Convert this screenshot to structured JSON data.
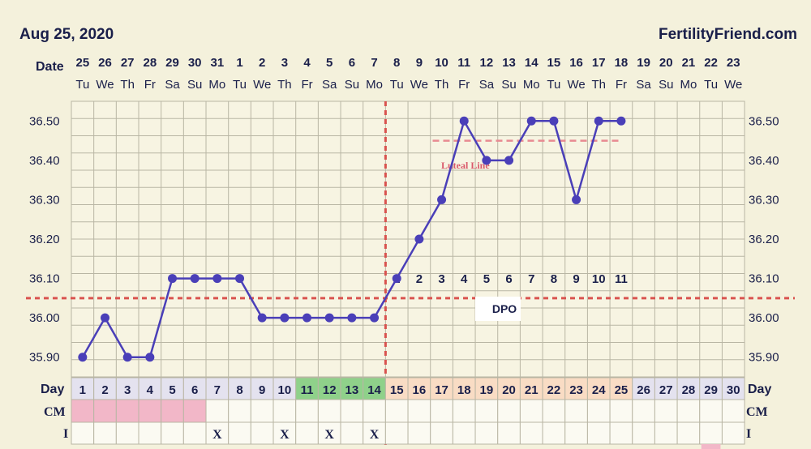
{
  "header": {
    "date": "Aug 25, 2020",
    "site": "FertilityFriend.com"
  },
  "row_labels": {
    "date": "Date",
    "day": "Day",
    "day_right": "Day",
    "cm": "CM",
    "cm_right": "CM",
    "i": "I",
    "i_right": "I"
  },
  "annotations": {
    "dpo_label": "DPO",
    "luteal_label": "Luteal Line"
  },
  "colors": {
    "line": "#4a3fb8",
    "coverline": "#d9534f",
    "luteal": "#e88a92",
    "fertile": "#8fd18a",
    "luteal_phase": "#f9dcc4",
    "menses": "#f2b7c8",
    "grid": "#b9b6a4"
  },
  "chart_data": {
    "type": "line",
    "title": "",
    "dates": [
      "25",
      "26",
      "27",
      "28",
      "29",
      "30",
      "31",
      "1",
      "2",
      "3",
      "4",
      "5",
      "6",
      "7",
      "8",
      "9",
      "10",
      "11",
      "12",
      "13",
      "14",
      "15",
      "16",
      "17",
      "18",
      "19",
      "20",
      "21",
      "22",
      "23"
    ],
    "weekdays": [
      "Tu",
      "We",
      "Th",
      "Fr",
      "Sa",
      "Su",
      "Mo",
      "Tu",
      "We",
      "Th",
      "Fr",
      "Sa",
      "Su",
      "Mo",
      "Tu",
      "We",
      "Th",
      "Fr",
      "Sa",
      "Su",
      "Mo",
      "Tu",
      "We",
      "Th",
      "Fr",
      "Sa",
      "Su",
      "Mo",
      "Tu",
      "We"
    ],
    "cycle_days": [
      "1",
      "2",
      "3",
      "4",
      "5",
      "6",
      "7",
      "8",
      "9",
      "10",
      "11",
      "12",
      "13",
      "14",
      "15",
      "16",
      "17",
      "18",
      "19",
      "20",
      "21",
      "22",
      "23",
      "24",
      "25",
      "26",
      "27",
      "28",
      "29",
      "30"
    ],
    "temperatures": [
      35.9,
      36.0,
      35.9,
      35.9,
      36.1,
      36.1,
      36.1,
      36.1,
      36.0,
      36.0,
      36.0,
      36.0,
      36.0,
      36.0,
      36.1,
      36.2,
      36.3,
      36.5,
      36.4,
      36.4,
      36.5,
      36.5,
      36.3,
      36.5,
      36.5
    ],
    "yticks": [
      "36.50",
      "36.40",
      "36.30",
      "36.20",
      "36.10",
      "36.00",
      "35.90"
    ],
    "ylim": [
      35.85,
      36.55
    ],
    "coverline": 36.05,
    "ovulation_day": 14,
    "luteal_line": 36.45,
    "luteal_range": [
      17,
      25
    ],
    "dpo": [
      "1",
      "2",
      "3",
      "4",
      "5",
      "6",
      "7",
      "8",
      "9",
      "10",
      "11"
    ],
    "dpo_start_day": 15,
    "fertile_days": [
      11,
      12,
      13,
      14
    ],
    "luteal_days": [
      15,
      16,
      17,
      18,
      19,
      20,
      21,
      22,
      23,
      24,
      25
    ],
    "menses_days": [
      1,
      2,
      3,
      4,
      5,
      6
    ],
    "intercourse": [
      "",
      "",
      "",
      "",
      "",
      "",
      "X",
      "",
      "",
      "X",
      "",
      "X",
      "",
      "X",
      "",
      "",
      "",
      "",
      "",
      "",
      "",
      "",
      "",
      "",
      "",
      "",
      "",
      "",
      "",
      ""
    ],
    "grid": true
  }
}
